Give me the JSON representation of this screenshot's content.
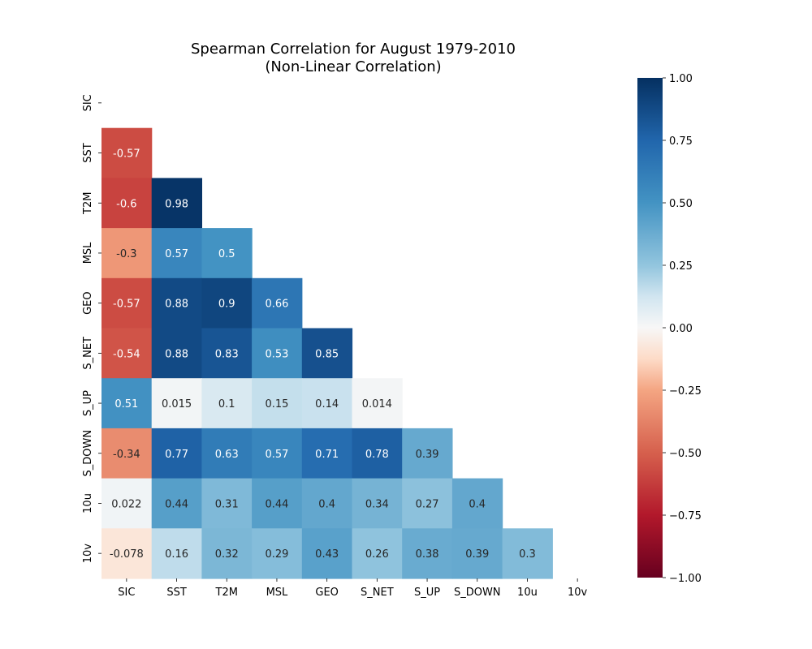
{
  "chart_data": {
    "type": "heatmap",
    "title": "Spearman Correlation for August 1979-2010",
    "subtitle": "(Non-Linear Correlation)",
    "xlabel": "",
    "ylabel": "",
    "x_categories": [
      "SIC",
      "SST",
      "T2M",
      "MSL",
      "GEO",
      "S_NET",
      "S_UP",
      "S_DOWN",
      "10u",
      "10v"
    ],
    "y_categories": [
      "SIC",
      "SST",
      "T2M",
      "MSL",
      "GEO",
      "S_NET",
      "S_UP",
      "S_DOWN",
      "10u",
      "10v"
    ],
    "mask": "upper-triangle-and-diagonal",
    "values": [
      [
        null,
        null,
        null,
        null,
        null,
        null,
        null,
        null,
        null,
        null
      ],
      [
        -0.57,
        null,
        null,
        null,
        null,
        null,
        null,
        null,
        null,
        null
      ],
      [
        -0.6,
        0.98,
        null,
        null,
        null,
        null,
        null,
        null,
        null,
        null
      ],
      [
        -0.3,
        0.57,
        0.5,
        null,
        null,
        null,
        null,
        null,
        null,
        null
      ],
      [
        -0.57,
        0.88,
        0.9,
        0.66,
        null,
        null,
        null,
        null,
        null,
        null
      ],
      [
        -0.54,
        0.88,
        0.83,
        0.53,
        0.85,
        null,
        null,
        null,
        null,
        null
      ],
      [
        0.51,
        0.015,
        0.1,
        0.15,
        0.14,
        0.014,
        null,
        null,
        null,
        null
      ],
      [
        -0.34,
        0.77,
        0.63,
        0.57,
        0.71,
        0.78,
        0.39,
        null,
        null,
        null
      ],
      [
        0.022,
        0.44,
        0.31,
        0.44,
        0.4,
        0.34,
        0.27,
        0.4,
        null,
        null
      ],
      [
        -0.078,
        0.16,
        0.32,
        0.29,
        0.43,
        0.26,
        0.38,
        0.39,
        0.3,
        null
      ]
    ],
    "colormap": "RdBu",
    "vmin": -1.0,
    "vmax": 1.0,
    "colorbar_ticks": [
      "1.00",
      "0.75",
      "0.50",
      "0.25",
      "0.00",
      "−0.25",
      "−0.50",
      "−0.75",
      "−1.00"
    ],
    "colorbar_tick_values": [
      1.0,
      0.75,
      0.5,
      0.25,
      0.0,
      -0.25,
      -0.5,
      -0.75,
      -1.0
    ],
    "annotate": true,
    "grid": false
  }
}
